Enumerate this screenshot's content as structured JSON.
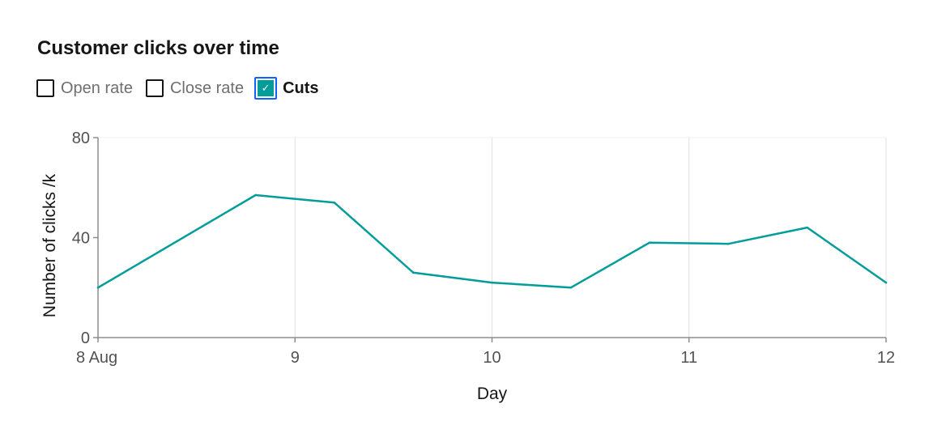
{
  "chart_data": {
    "type": "line",
    "title": "Customer clicks over time",
    "xlabel": "Day",
    "ylabel": "Number of clicks /k",
    "ylim": [
      0,
      80
    ],
    "yticks": [
      0,
      40,
      80
    ],
    "xlim": [
      "8 Aug",
      "12"
    ],
    "xticks": [
      {
        "value": 0,
        "label": "8 Aug"
      },
      {
        "value": 1,
        "label": "9"
      },
      {
        "value": 2,
        "label": "10"
      },
      {
        "value": 3,
        "label": "11"
      },
      {
        "value": 4,
        "label": "12"
      }
    ],
    "grid": {
      "x": true,
      "y": false
    },
    "legend": [
      {
        "label": "Open rate",
        "checked": false
      },
      {
        "label": "Close rate",
        "checked": false
      },
      {
        "label": "Cuts",
        "checked": true
      }
    ],
    "series": [
      {
        "name": "Cuts",
        "color": "#009d9a",
        "x": [
          0,
          0.8,
          1.2,
          1.6,
          2.0,
          2.4,
          2.8,
          3.2,
          3.6,
          4.0
        ],
        "values": [
          20,
          57,
          54,
          26,
          22,
          20,
          38,
          37.5,
          44,
          22
        ]
      }
    ]
  },
  "colors": {
    "series": "#009d9a",
    "focus": "#0f62fe",
    "grid": "#e0e0e0",
    "axis": "#8d8d8d"
  },
  "icons": {
    "checked": "checkmark-icon"
  }
}
